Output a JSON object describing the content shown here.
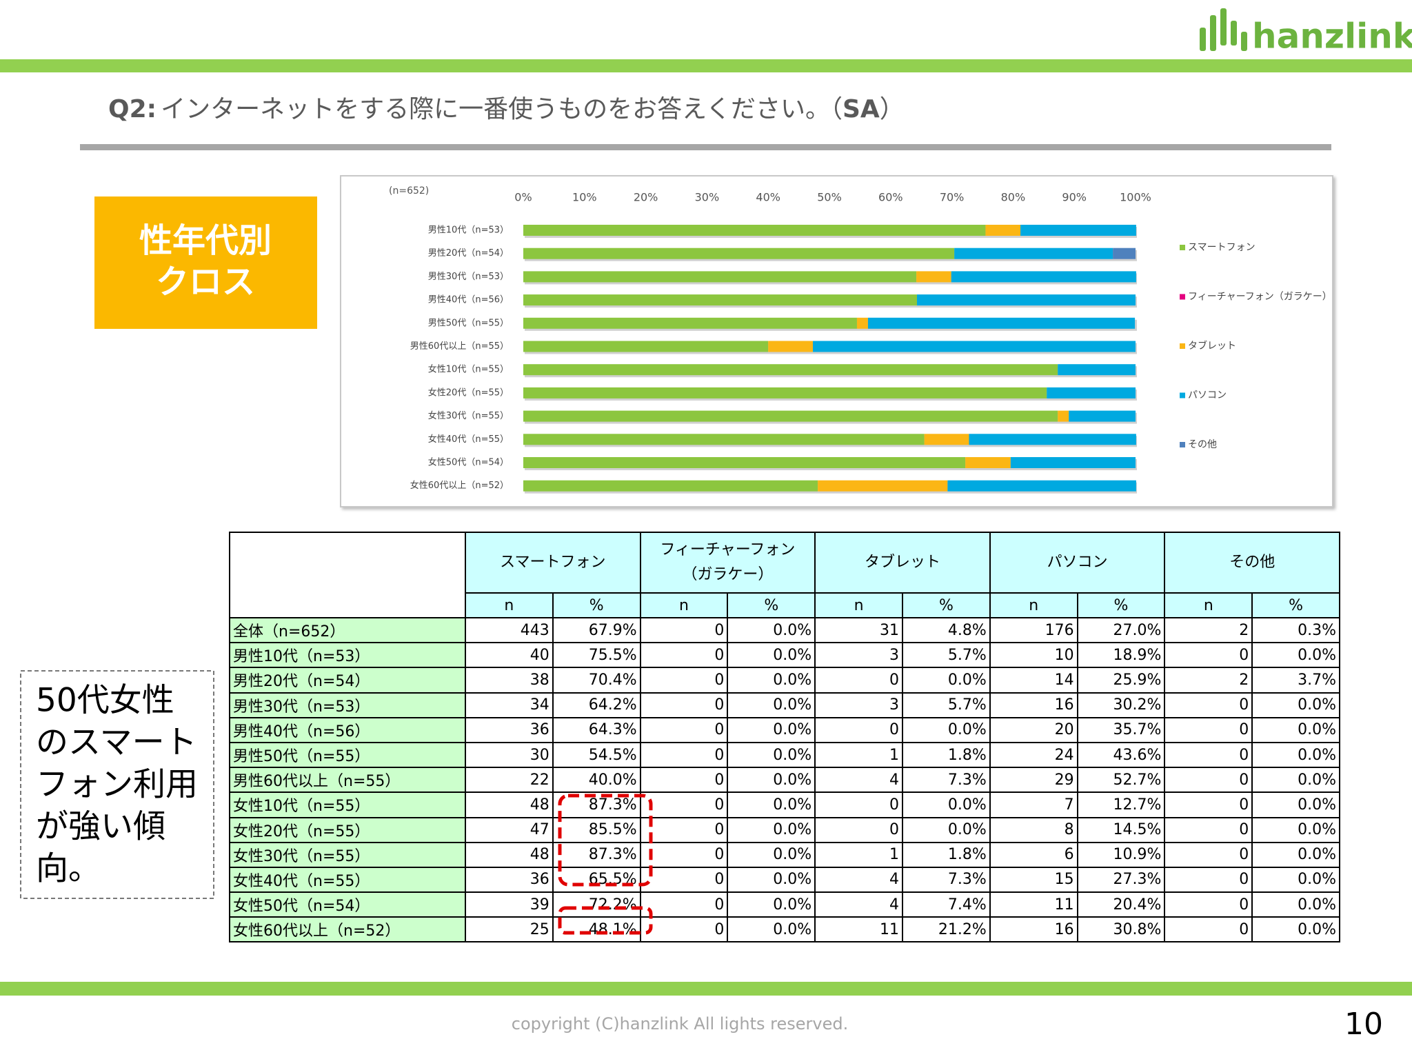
{
  "header": {
    "logo": "hanzlink",
    "title_parts": [
      "Q2:",
      "インターネットをする際に一番使うものをお答えください。（",
      "SA",
      "）"
    ]
  },
  "badge_lines": [
    "性年代別",
    "クロス"
  ],
  "callout_lines": [
    "50代女性",
    "のスマート",
    "フォン利用",
    "が強い傾",
    "向。"
  ],
  "chart_data": {
    "type": "stacked-bar-horizontal",
    "note": "(n=652)",
    "categories": [
      "男性10代（n=53）",
      "男性20代（n=54）",
      "男性30代（n=53）",
      "男性40代（n=56）",
      "男性50代（n=55）",
      "男性60代以上（n=55）",
      "女性10代（n=55）",
      "女性20代（n=55）",
      "女性30代（n=55）",
      "女性40代（n=55）",
      "女性50代（n=54）",
      "女性60代以上（n=52）"
    ],
    "series": [
      {
        "name": "スマートフォン",
        "color": "#8cc63f",
        "values": [
          75.5,
          70.4,
          64.2,
          64.3,
          54.5,
          40.0,
          87.3,
          85.5,
          87.3,
          65.5,
          72.2,
          48.1
        ]
      },
      {
        "name": "フィーチャーフォン（ガラケー）",
        "color": "#e4007f",
        "values": [
          0,
          0,
          0,
          0,
          0,
          0,
          0,
          0,
          0,
          0,
          0,
          0
        ]
      },
      {
        "name": "タブレット",
        "color": "#fbb615",
        "values": [
          5.7,
          0,
          5.7,
          0,
          1.8,
          7.3,
          0,
          0,
          1.8,
          7.3,
          7.4,
          21.2
        ]
      },
      {
        "name": "パソコン",
        "color": "#00a9e0",
        "values": [
          18.9,
          25.9,
          30.2,
          35.7,
          43.6,
          52.7,
          12.7,
          14.5,
          10.9,
          27.3,
          20.4,
          30.8
        ]
      },
      {
        "name": "その他",
        "color": "#4f81bd",
        "values": [
          0,
          3.7,
          0,
          0,
          0,
          0,
          0,
          0,
          0,
          0,
          0,
          0
        ]
      }
    ],
    "xlim": [
      0,
      100
    ],
    "xticks": [
      {
        "value": 0,
        "label": "0%"
      },
      {
        "value": 10,
        "label": "10%"
      },
      {
        "value": 20,
        "label": "20%"
      },
      {
        "value": 30,
        "label": "30%"
      },
      {
        "value": 40,
        "label": "40%"
      },
      {
        "value": 50,
        "label": "50%"
      },
      {
        "value": 60,
        "label": "60%"
      },
      {
        "value": 70,
        "label": "70%"
      },
      {
        "value": 80,
        "label": "80%"
      },
      {
        "value": 90,
        "label": "90%"
      },
      {
        "value": 100,
        "label": "100%"
      }
    ],
    "legend": "right"
  },
  "table": {
    "groups": [
      [
        "スマートフォン"
      ],
      [
        "フィーチャーフォン",
        "（ガラケー）"
      ],
      [
        "タブレット"
      ],
      [
        "パソコン"
      ],
      [
        "その他"
      ]
    ],
    "subheader": [
      "n",
      "%",
      "n",
      "%",
      "n",
      "%",
      "n",
      "%",
      "n",
      "%"
    ],
    "rows": [
      [
        "全体（n=652）",
        "443",
        "67.9%",
        "0",
        "0.0%",
        "31",
        "4.8%",
        "176",
        "27.0%",
        "2",
        "0.3%"
      ],
      [
        "男性10代（n=53）",
        "40",
        "75.5%",
        "0",
        "0.0%",
        "3",
        "5.7%",
        "10",
        "18.9%",
        "0",
        "0.0%"
      ],
      [
        "男性20代（n=54）",
        "38",
        "70.4%",
        "0",
        "0.0%",
        "0",
        "0.0%",
        "14",
        "25.9%",
        "2",
        "3.7%"
      ],
      [
        "男性30代（n=53）",
        "34",
        "64.2%",
        "0",
        "0.0%",
        "3",
        "5.7%",
        "16",
        "30.2%",
        "0",
        "0.0%"
      ],
      [
        "男性40代（n=56）",
        "36",
        "64.3%",
        "0",
        "0.0%",
        "0",
        "0.0%",
        "20",
        "35.7%",
        "0",
        "0.0%"
      ],
      [
        "男性50代（n=55）",
        "30",
        "54.5%",
        "0",
        "0.0%",
        "1",
        "1.8%",
        "24",
        "43.6%",
        "0",
        "0.0%"
      ],
      [
        "男性60代以上（n=55）",
        "22",
        "40.0%",
        "0",
        "0.0%",
        "4",
        "7.3%",
        "29",
        "52.7%",
        "0",
        "0.0%"
      ],
      [
        "女性10代（n=55）",
        "48",
        "87.3%",
        "0",
        "0.0%",
        "0",
        "0.0%",
        "7",
        "12.7%",
        "0",
        "0.0%"
      ],
      [
        "女性20代（n=55）",
        "47",
        "85.5%",
        "0",
        "0.0%",
        "0",
        "0.0%",
        "8",
        "14.5%",
        "0",
        "0.0%"
      ],
      [
        "女性30代（n=55）",
        "48",
        "87.3%",
        "0",
        "0.0%",
        "1",
        "1.8%",
        "6",
        "10.9%",
        "0",
        "0.0%"
      ],
      [
        "女性40代（n=55）",
        "36",
        "65.5%",
        "0",
        "0.0%",
        "4",
        "7.3%",
        "15",
        "27.3%",
        "0",
        "0.0%"
      ],
      [
        "女性50代（n=54）",
        "39",
        "72.2%",
        "0",
        "0.0%",
        "4",
        "7.4%",
        "11",
        "20.4%",
        "0",
        "0.0%"
      ],
      [
        "女性60代以上（n=52）",
        "25",
        "48.1%",
        "0",
        "0.0%",
        "11",
        "21.2%",
        "16",
        "30.8%",
        "0",
        "0.0%"
      ]
    ]
  },
  "footer": {
    "copyright": "copyright (C)hanzlink  All lights reserved.",
    "page": "10"
  }
}
